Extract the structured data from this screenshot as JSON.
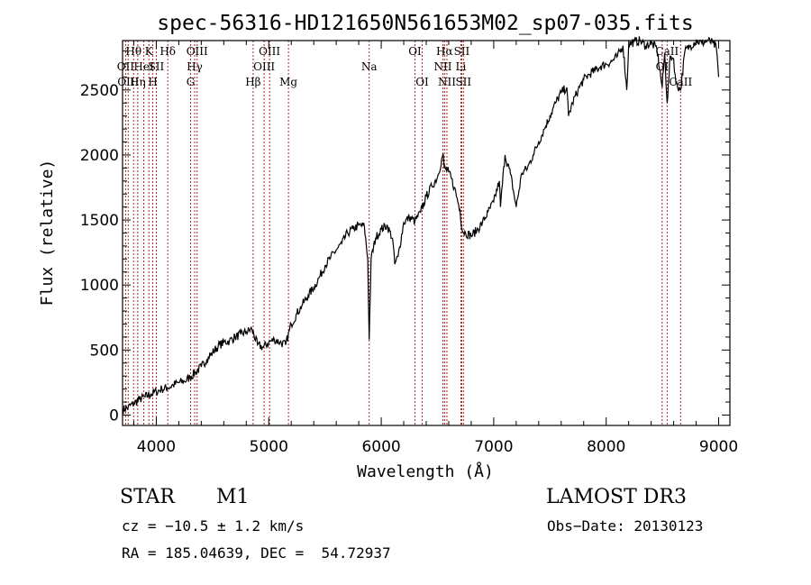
{
  "chart_data": {
    "type": "line",
    "title": "spec-56316-HD121650N561653M02_sp07-035.fits",
    "xlabel": "Wavelength (Å)",
    "ylabel": "Flux (relative)",
    "xlim": [
      3700,
      9100
    ],
    "ylim": [
      -80,
      2880
    ],
    "x_ticks": [
      4000,
      5000,
      6000,
      7000,
      8000,
      9000
    ],
    "y_ticks": [
      0,
      500,
      1000,
      1500,
      2000,
      2500
    ],
    "line_color": "#000000",
    "marker_color": "#b22222",
    "series": [
      {
        "name": "flux",
        "x": [
          3700,
          3750,
          3800,
          3850,
          3900,
          3950,
          4000,
          4050,
          4100,
          4150,
          4200,
          4250,
          4300,
          4350,
          4400,
          4450,
          4500,
          4550,
          4600,
          4650,
          4700,
          4750,
          4800,
          4850,
          4900,
          4950,
          5000,
          5050,
          5100,
          5150,
          5200,
          5250,
          5300,
          5350,
          5400,
          5450,
          5500,
          5550,
          5600,
          5650,
          5700,
          5750,
          5800,
          5850,
          5880,
          5893,
          5910,
          5950,
          6000,
          6050,
          6100,
          6120,
          6150,
          6200,
          6250,
          6300,
          6350,
          6400,
          6450,
          6500,
          6550,
          6560,
          6600,
          6650,
          6700,
          6720,
          6750,
          6800,
          6850,
          6900,
          6950,
          7000,
          7050,
          7060,
          7100,
          7150,
          7200,
          7250,
          7300,
          7350,
          7400,
          7450,
          7500,
          7550,
          7600,
          7650,
          7665,
          7700,
          7750,
          7800,
          7850,
          7900,
          7950,
          8000,
          8050,
          8100,
          8150,
          8183,
          8200,
          8250,
          8300,
          8350,
          8400,
          8450,
          8498,
          8520,
          8542,
          8570,
          8600,
          8620,
          8662,
          8700,
          8750,
          8800,
          8850,
          8900,
          8950,
          8980,
          9000
        ],
        "values": [
          40,
          60,
          90,
          120,
          140,
          160,
          180,
          200,
          210,
          230,
          250,
          260,
          290,
          330,
          370,
          430,
          480,
          530,
          560,
          570,
          600,
          620,
          640,
          660,
          540,
          520,
          560,
          580,
          560,
          540,
          700,
          780,
          850,
          920,
          980,
          1060,
          1150,
          1210,
          1270,
          1320,
          1400,
          1430,
          1460,
          1450,
          1200,
          580,
          1200,
          1360,
          1430,
          1460,
          1360,
          1160,
          1220,
          1480,
          1520,
          1490,
          1560,
          1680,
          1760,
          1830,
          2010,
          1900,
          1870,
          1750,
          1580,
          1420,
          1400,
          1380,
          1420,
          1480,
          1560,
          1640,
          1800,
          1600,
          2000,
          1850,
          1600,
          1860,
          1900,
          2000,
          2100,
          2200,
          2300,
          2400,
          2480,
          2520,
          2300,
          2400,
          2500,
          2580,
          2620,
          2650,
          2680,
          2700,
          2720,
          2760,
          2840,
          2500,
          2850,
          2870,
          2880,
          2840,
          2860,
          2820,
          2520,
          2780,
          2400,
          2760,
          2740,
          2550,
          2500,
          2800,
          2840,
          2880,
          2860,
          2880,
          2860,
          2820,
          2600
        ]
      }
    ],
    "spectral_lines": [
      {
        "label": "Hθ",
        "x": 3798,
        "row": 0
      },
      {
        "label": "OII",
        "x": 3727,
        "row": 1
      },
      {
        "label": "OIII",
        "x": 3750,
        "row": 2
      },
      {
        "label": "Hη",
        "x": 3835,
        "row": 2
      },
      {
        "label": "HeI",
        "x": 3889,
        "row": 1
      },
      {
        "label": "K",
        "x": 3934,
        "row": 0
      },
      {
        "label": "SII",
        "x": 4000,
        "row": 1
      },
      {
        "label": "H",
        "x": 3969,
        "row": 2
      },
      {
        "label": "Hδ",
        "x": 4102,
        "row": 0
      },
      {
        "label": "OIII",
        "x": 4363,
        "row": 0
      },
      {
        "label": "Hγ",
        "x": 4341,
        "row": 1
      },
      {
        "label": "G",
        "x": 4305,
        "row": 2
      },
      {
        "label": "Hβ",
        "x": 4861,
        "row": 2
      },
      {
        "label": "OIII",
        "x": 5007,
        "row": 0
      },
      {
        "label": "OIII",
        "x": 4959,
        "row": 1
      },
      {
        "label": "Mg",
        "x": 5175,
        "row": 2
      },
      {
        "label": "Na",
        "x": 5893,
        "row": 1
      },
      {
        "label": "OI",
        "x": 6300,
        "row": 0
      },
      {
        "label": "OI",
        "x": 6364,
        "row": 2
      },
      {
        "label": "Hα",
        "x": 6563,
        "row": 0
      },
      {
        "label": "SII",
        "x": 6716,
        "row": 0
      },
      {
        "label": "NII",
        "x": 6548,
        "row": 1
      },
      {
        "label": "Li",
        "x": 6708,
        "row": 1
      },
      {
        "label": "NII",
        "x": 6584,
        "row": 2
      },
      {
        "label": "SII",
        "x": 6731,
        "row": 2
      },
      {
        "label": "CaII",
        "x": 8542,
        "row": 0
      },
      {
        "label": "OI",
        "x": 8498,
        "row": 1
      },
      {
        "label": "CaII",
        "x": 8662,
        "row": 2
      }
    ]
  },
  "info": {
    "class": "STAR",
    "subclass": "M1",
    "survey": "LAMOST DR3",
    "cz": "cz = −10.5 ± 1.2 km/s",
    "obs_date": "Obs−Date: 20130123",
    "coords": "RA = 185.04639, DEC =  54.72937"
  }
}
